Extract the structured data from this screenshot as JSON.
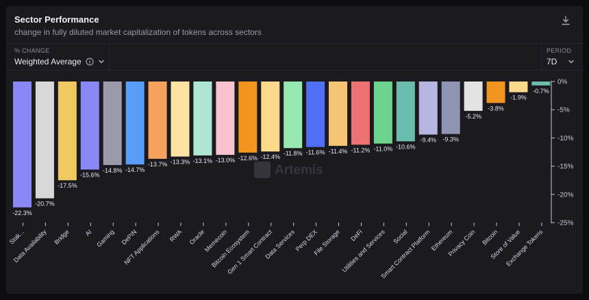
{
  "header": {
    "title": "Sector Performance",
    "subtitle": "change in fully diluted market capitalization of tokens across sectors"
  },
  "controls": {
    "change": {
      "label": "% CHANGE",
      "value": "Weighted Average"
    },
    "period": {
      "label": "PERIOD",
      "value": "7D"
    }
  },
  "watermark": "Artemis",
  "icons": {
    "download": "download-icon",
    "info": "info-icon",
    "chevron": "chevron-down-icon"
  },
  "chart_data": {
    "type": "bar",
    "title": "Sector Performance",
    "ylim": [
      -25,
      0
    ],
    "yticks": [
      0,
      -5,
      -10,
      -15,
      -20,
      -25
    ],
    "ytick_labels": [
      "0%",
      "-5%",
      "-10%",
      "-15%",
      "-20%",
      "-25%"
    ],
    "y_axis_position": "right",
    "grid": false,
    "legend": "none",
    "categories": [
      "Stak...",
      "Data Availability",
      "Bridge",
      "AI",
      "Gaming",
      "DePIN",
      "NFT Applications",
      "RWA",
      "Oracle",
      "Memecoin",
      "Bitcoin Ecosystem",
      "Gen 1 Smart Contract",
      "Data Services",
      "Perp DEX",
      "File Storage",
      "DeFi",
      "Utilities and Services",
      "Social",
      "Smart Contract Platform",
      "Ethereum",
      "Privacy Coin",
      "Bitcoin",
      "Store of Value",
      "Exchange Tokens"
    ],
    "values": [
      -22.3,
      -20.7,
      -17.5,
      -15.6,
      -14.8,
      -14.7,
      -13.7,
      -13.3,
      -13.1,
      -13.0,
      -12.6,
      -12.4,
      -11.8,
      -11.6,
      -11.4,
      -11.2,
      -11.0,
      -10.6,
      -9.4,
      -9.3,
      -5.2,
      -3.8,
      -1.9,
      -0.7
    ],
    "value_labels": [
      "-22.3%",
      "-20.7%",
      "-17.5%",
      "-15.6%",
      "-14.8%",
      "-14.7%",
      "-13.7%",
      "-13.3%",
      "-13.1%",
      "-13.0%",
      "-12.6%",
      "-12.4%",
      "-11.8%",
      "-11.6%",
      "-11.4%",
      "-11.2%",
      "-11.0%",
      "-10.6%",
      "-9.4%",
      "-9.3%",
      "-5.2%",
      "-3.8%",
      "-1.9%",
      "-0.7%"
    ],
    "colors": [
      "#8a87f7",
      "#d8d8d8",
      "#efc862",
      "#8a87f7",
      "#9b9aab",
      "#5a9df8",
      "#f5a25f",
      "#fde2a4",
      "#afe6d3",
      "#f9c2cf",
      "#f29520",
      "#fdd98c",
      "#97e8b0",
      "#4f6ff4",
      "#f5c575",
      "#ee7272",
      "#6dd38e",
      "#6cbcad",
      "#b7b6e2",
      "#8e94b2",
      "#e3e3e3",
      "#f29520",
      "#fdd98c",
      "#6cbcad"
    ]
  }
}
